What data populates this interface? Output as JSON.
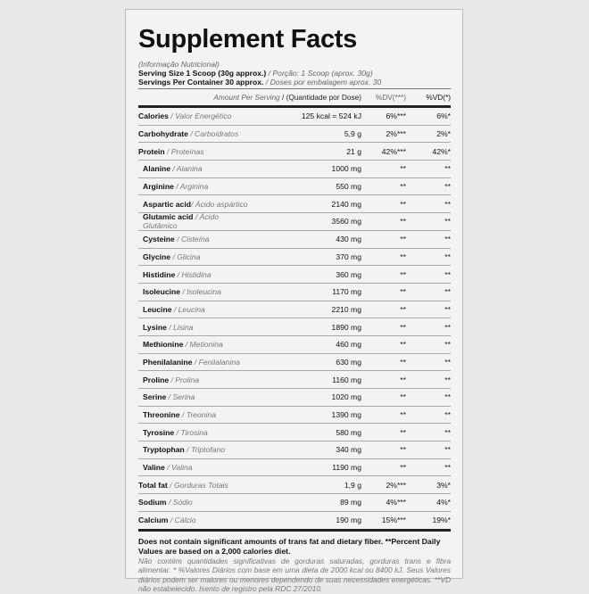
{
  "title": "Supplement Facts",
  "subtitle": "(Informação Nutricional)",
  "serving_size": {
    "en": "Serving Size 1 Scoop (30g approx.)",
    "pt": " / Porção: 1 Scoop (aprox. 30g)"
  },
  "servings": {
    "en": "Servings Per Container 30 approx.",
    "pt": " / Doses por embalagem aprox. 30"
  },
  "header": {
    "amount_en": "Amount Per Serving ",
    "amount_pt": " / (Quantidade por Dose)",
    "dv": "%DV(***)",
    "vd": "%VD(*)"
  },
  "rows": [
    {
      "en": "Calories",
      "pt": " / Valor Energético",
      "amount": "125 kcal = 524 kJ",
      "dv": "6%***",
      "vd": "6%*",
      "indent": false
    },
    {
      "en": "Carbohydrate",
      "pt": " / Carboidratos",
      "amount": "5,9 g",
      "dv": "2%***",
      "vd": "2%*",
      "indent": false
    },
    {
      "en": "Protein",
      "pt": " / Proteínas",
      "amount": "21 g",
      "dv": "42%***",
      "vd": "42%*",
      "indent": false
    },
    {
      "en": "Alanine",
      "pt": " / Alanina",
      "amount": "1000 mg",
      "dv": "**",
      "vd": "**",
      "indent": true
    },
    {
      "en": "Arginine",
      "pt": " / Arginina",
      "amount": "550 mg",
      "dv": "**",
      "vd": "**",
      "indent": true
    },
    {
      "en": "Aspartic acid",
      "pt": "/ Ácido aspártico",
      "amount": "2140 mg",
      "dv": "**",
      "vd": "**",
      "indent": true
    },
    {
      "en": "Glutamic acid",
      "pt": " / Ácido Glutâmico",
      "amount": "3560 mg",
      "dv": "**",
      "vd": "**",
      "indent": true
    },
    {
      "en": "Cysteine",
      "pt": " / Cisteína",
      "amount": "430 mg",
      "dv": "**",
      "vd": "**",
      "indent": true
    },
    {
      "en": "Glycine",
      "pt": " / Glicina",
      "amount": "370 mg",
      "dv": "**",
      "vd": "**",
      "indent": true
    },
    {
      "en": "Histidine",
      "pt": " / Histidina",
      "amount": "360 mg",
      "dv": "**",
      "vd": "**",
      "indent": true
    },
    {
      "en": "Isoleucine",
      "pt": " / Isoleucina",
      "amount": "1170 mg",
      "dv": "**",
      "vd": "**",
      "indent": true
    },
    {
      "en": "Leucine",
      "pt": " / Leucina",
      "amount": "2210 mg",
      "dv": "**",
      "vd": "**",
      "indent": true
    },
    {
      "en": "Lysine",
      "pt": " / Lisina",
      "amount": "1890 mg",
      "dv": "**",
      "vd": "**",
      "indent": true
    },
    {
      "en": "Methionine",
      "pt": " / Metionina",
      "amount": "460 mg",
      "dv": "**",
      "vd": "**",
      "indent": true
    },
    {
      "en": "Phenilalanine",
      "pt": " / Fenilalanina",
      "amount": "630 mg",
      "dv": "**",
      "vd": "**",
      "indent": true
    },
    {
      "en": "Proline",
      "pt": " / Prolina",
      "amount": "1160 mg",
      "dv": "**",
      "vd": "**",
      "indent": true
    },
    {
      "en": "Serine",
      "pt": " / Serina",
      "amount": "1020 mg",
      "dv": "**",
      "vd": "**",
      "indent": true
    },
    {
      "en": "Threonine",
      "pt": " / Treonina",
      "amount": "1390 mg",
      "dv": "**",
      "vd": "**",
      "indent": true
    },
    {
      "en": "Tyrosine",
      "pt": " / Tirosina",
      "amount": "580 mg",
      "dv": "**",
      "vd": "**",
      "indent": true
    },
    {
      "en": "Tryptophan",
      "pt": " / Triptofano",
      "amount": "340 mg",
      "dv": "**",
      "vd": "**",
      "indent": true
    },
    {
      "en": "Valine",
      "pt": " / Valina",
      "amount": "1190 mg",
      "dv": "**",
      "vd": "**",
      "indent": true
    },
    {
      "en": "Total fat",
      "pt": " / Gorduras Totais",
      "amount": "1,9 g",
      "dv": "2%***",
      "vd": "3%*",
      "indent": false
    },
    {
      "en": "Sodium",
      "pt": " / Sódio",
      "amount": "89 mg",
      "dv": "4%***",
      "vd": "4%*",
      "indent": false
    },
    {
      "en": "Calcium",
      "pt": " / Cálcio",
      "amount": "190 mg",
      "dv": "15%***",
      "vd": "19%*",
      "indent": false
    }
  ],
  "footer": {
    "en": "Does not contain significant amounts of trans fat and dietary fiber. **Percent Daily Values are based on a 2,000 calories diet.",
    "pt": "Não contém quantidades significativas de gorduras saturadas, gorduras trans e fibra alimentar. * %Valores Diários com base em uma dieta de 2000 kcal ou 8400 kJ. Seus Valores diários podem ser maiores ou menores dependendo de suas necessidades energéticas. **VD não estabelecido. Isento de registro pela RDC 27/2010."
  }
}
